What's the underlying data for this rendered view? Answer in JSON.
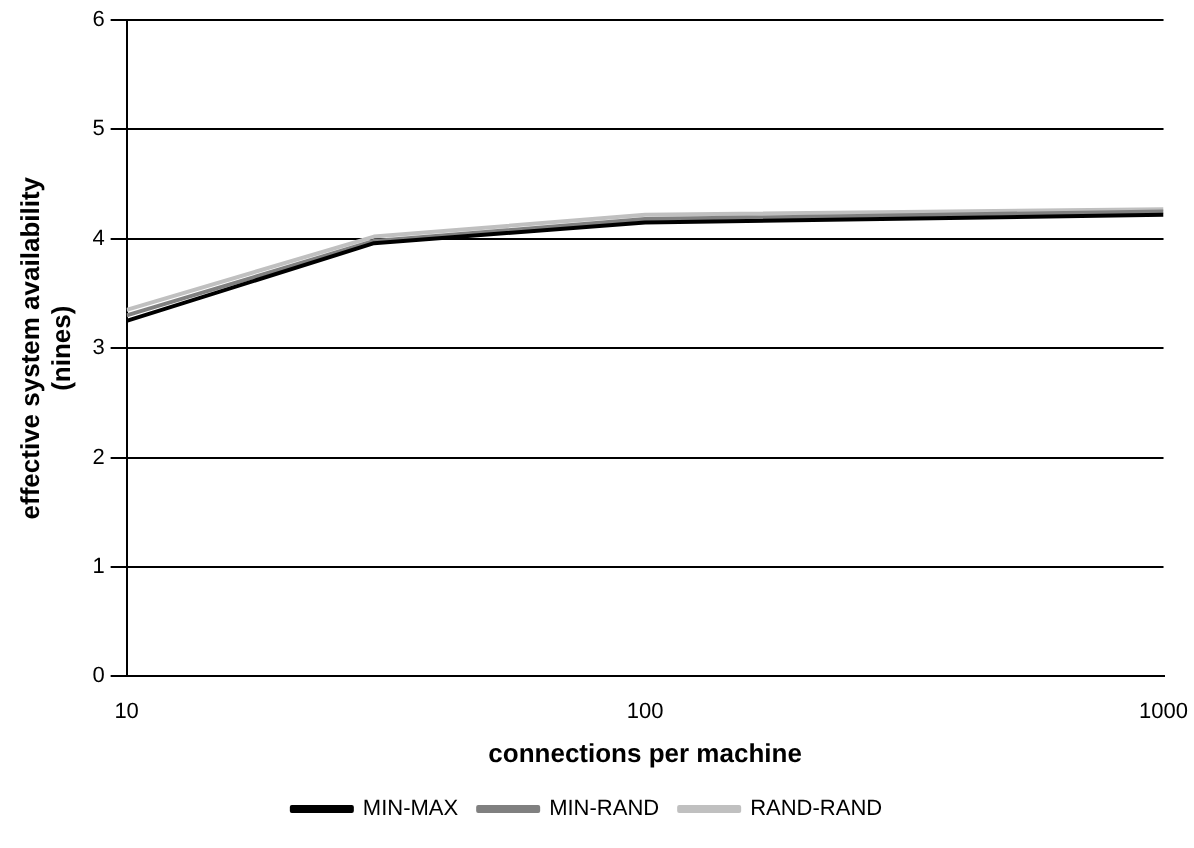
{
  "chart_data": {
    "type": "line",
    "xlabel": "connections per machine",
    "ylabel": "effective system availability\n(nines)",
    "x": [
      10,
      30,
      100,
      1000
    ],
    "series": [
      {
        "name": "MIN-MAX",
        "color": "#000000",
        "values": [
          3.25,
          3.96,
          4.15,
          4.22
        ]
      },
      {
        "name": "MIN-RAND",
        "color": "#808080",
        "values": [
          3.3,
          3.98,
          4.18,
          4.25
        ]
      },
      {
        "name": "RAND-RAND",
        "color": "#c0c0c0",
        "values": [
          3.35,
          4.02,
          4.22,
          4.27
        ]
      }
    ],
    "log": "x",
    "xlim": [
      10,
      1000
    ],
    "xticks": [
      10,
      100,
      1000
    ],
    "ylim": [
      0,
      6
    ],
    "yticks": [
      0,
      1,
      2,
      3,
      4,
      5,
      6
    ],
    "grid": "y",
    "legend": "bottom",
    "marker": "none",
    "line_style": "solid"
  }
}
